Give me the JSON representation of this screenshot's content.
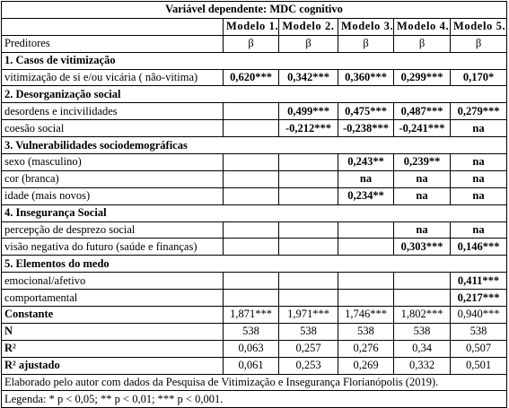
{
  "title": "Variável dependente: MDC cognitivo",
  "models": [
    "Modelo 1.",
    "Modelo 2.",
    "Modelo 3.",
    "Modelo 4.",
    "Modelo 5."
  ],
  "predictors_label": "Preditores",
  "beta_symbol": "β",
  "sections": [
    {
      "heading": "1. Casos de vitimização",
      "rows": [
        {
          "label": "vitimização de si e/ou vicária ( não-vitima)",
          "values": [
            "0,620***",
            "0,342***",
            "0,360***",
            "0,299***",
            "0,170*"
          ]
        }
      ]
    },
    {
      "heading": "2. Desorganização social",
      "rows": [
        {
          "label": "desordens e incivilidades",
          "values": [
            "",
            "0,499***",
            "0,475***",
            "0,487***",
            "0,279***"
          ]
        },
        {
          "label": "coesão social",
          "values": [
            "",
            "-0,212***",
            "-0,238***",
            "-0,241***",
            "na"
          ]
        }
      ]
    },
    {
      "heading": "3. Vulnerabilidades sociodemográficas",
      "rows": [
        {
          "label": "sexo (masculino)",
          "values": [
            "",
            "",
            "0,243**",
            "0,239**",
            "na"
          ]
        },
        {
          "label": "cor (branca)",
          "values": [
            "",
            "",
            "na",
            "na",
            "na"
          ]
        },
        {
          "label": "idade (mais novos)",
          "values": [
            "",
            "",
            "0,234**",
            "na",
            "na"
          ]
        }
      ]
    },
    {
      "heading": "4. Insegurança Social",
      "rows": [
        {
          "label": "percepção de desprezo social",
          "values": [
            "",
            "",
            "",
            "na",
            "na"
          ]
        },
        {
          "label": "visão negativa do futuro (saúde e finanças)",
          "values": [
            "",
            "",
            "",
            "0,303***",
            "0,146***"
          ]
        }
      ]
    },
    {
      "heading": "5. Elementos do medo",
      "rows": [
        {
          "label": "emocional/afetivo",
          "values": [
            "",
            "",
            "",
            "",
            "0,411***"
          ]
        },
        {
          "label": "comportamental",
          "values": [
            "",
            "",
            "",
            "",
            "0,217***"
          ]
        }
      ]
    }
  ],
  "stats": [
    {
      "label": "Constante",
      "values": [
        "1,871***",
        "1,971***",
        "1,746***",
        "1,802***",
        "0,940***"
      ]
    },
    {
      "label": "N",
      "values": [
        "538",
        "538",
        "538",
        "538",
        "538"
      ]
    },
    {
      "label": "R²",
      "values": [
        "0,063",
        "0,257",
        "0,276",
        "0,34",
        "0,507"
      ]
    },
    {
      "label": "R² ajustado",
      "values": [
        "0,061",
        "0,253",
        "0,269",
        "0,332",
        "0,501"
      ]
    }
  ],
  "source_note": "Elaborado pelo autor com dados da Pesquisa de Vitimização e Insegurança Florianópolis (2019).",
  "legend": "Legenda: * p < 0,05; ** p < 0,01; *** p < 0,001."
}
